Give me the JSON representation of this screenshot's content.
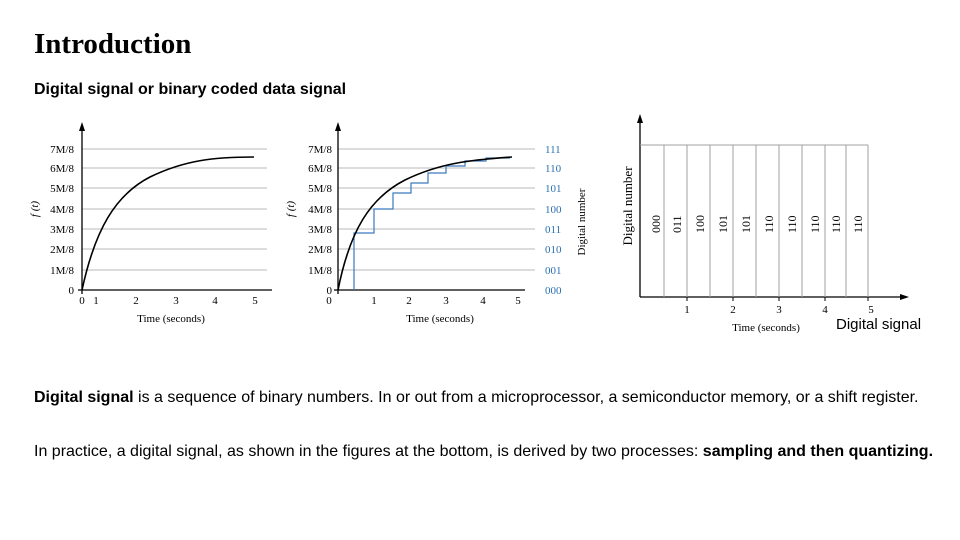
{
  "slide": {
    "title": "Introduction",
    "subtitle": "Digital signal or binary coded data signal",
    "caption": "Digital signal",
    "para1_bold": "Digital signal",
    "para1_rest": " is a sequence of binary numbers. In or out from a microprocessor, a semiconductor memory, or a shift register.",
    "para2_rest": "In practice, a digital signal, as shown in the figures at the bottom, is derived by two processes: ",
    "para2_bold": "sampling and then quantizing."
  },
  "chart_data": [
    {
      "type": "line",
      "ylabel": "f (t)",
      "xlabel": "Time (seconds)",
      "x_ticks": [
        "0",
        "1",
        "2",
        "3",
        "4",
        "5"
      ],
      "y_ticks": [
        "0",
        "1M/8",
        "2M/8",
        "3M/8",
        "4M/8",
        "5M/8",
        "6M/8",
        "7M/8"
      ],
      "xlim": [
        0,
        5
      ],
      "ylim": [
        0,
        7
      ],
      "grid": true
    },
    {
      "type": "line",
      "ylabel": "f (t)",
      "xlabel": "Time (seconds)",
      "y2label": "Digital number",
      "x_ticks": [
        "0",
        "1",
        "2",
        "3",
        "4",
        "5"
      ],
      "y_ticks": [
        "0",
        "1M/8",
        "2M/8",
        "3M/8",
        "4M/8",
        "5M/8",
        "6M/8",
        "7M/8"
      ],
      "y2_ticks": [
        "000",
        "001",
        "010",
        "011",
        "100",
        "101",
        "110",
        "111"
      ],
      "xlim": [
        0,
        5
      ],
      "ylim": [
        0,
        7
      ],
      "grid": true
    },
    {
      "type": "bar",
      "ylabel": "Digital number",
      "xlabel": "Time (seconds)",
      "x_ticks": [
        "1",
        "2",
        "3",
        "4",
        "5"
      ],
      "codes": [
        "000",
        "011",
        "100",
        "101",
        "101",
        "110",
        "110",
        "110",
        "110",
        "110"
      ]
    }
  ]
}
